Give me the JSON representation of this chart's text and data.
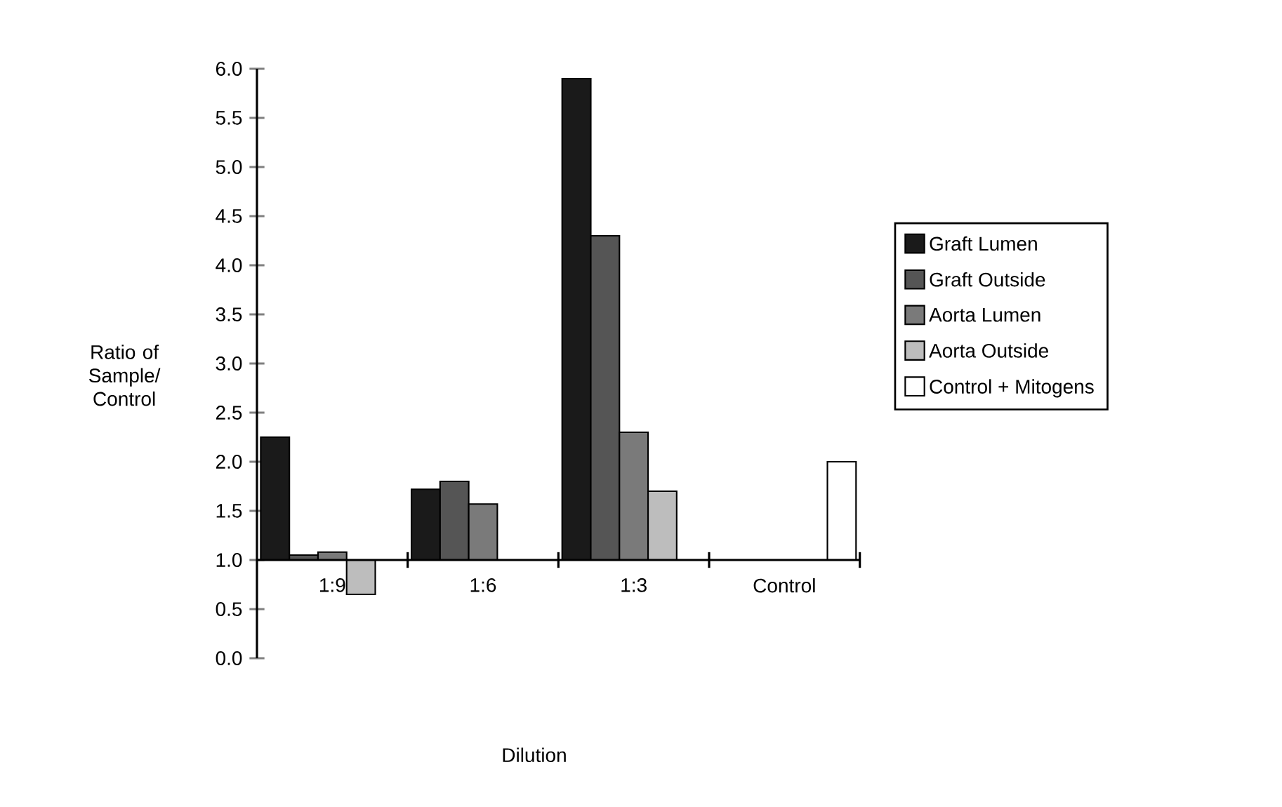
{
  "chart_data": {
    "type": "bar",
    "xlabel": "Dilution",
    "ylabel": "Ratio of Sample/ Control",
    "categories": [
      "1:9",
      "1:6",
      "1:3",
      "Control"
    ],
    "series": [
      {
        "name": "Graft Lumen",
        "color": "#1a1a1a",
        "base": [
          1.0,
          1.0,
          1.0,
          null
        ],
        "values": [
          1.25,
          0.72,
          4.9,
          null
        ]
      },
      {
        "name": "Graft Outside",
        "color": "#555555",
        "base": [
          1.0,
          1.0,
          1.0,
          null
        ],
        "values": [
          0.05,
          0.8,
          3.3,
          null
        ]
      },
      {
        "name": "Aorta Lumen",
        "color": "#7a7a7a",
        "base": [
          1.0,
          1.0,
          1.0,
          null
        ],
        "values": [
          0.08,
          0.57,
          1.3,
          null
        ]
      },
      {
        "name": "Aorta Outside",
        "color": "#bdbdbd",
        "base": [
          1.0,
          null,
          1.0,
          null
        ],
        "values": [
          -0.35,
          null,
          0.7,
          null
        ]
      },
      {
        "name": "Control + Mitogens",
        "color": "#ffffff",
        "base": [
          null,
          null,
          null,
          1.0
        ],
        "values": [
          null,
          null,
          null,
          1.0
        ]
      }
    ],
    "ylim": [
      0,
      6
    ],
    "yticks": [
      {
        "value": 0,
        "label": "0.0"
      },
      {
        "value": 0.5,
        "label": "0.5"
      },
      {
        "value": 1,
        "label": "1.0"
      },
      {
        "value": 1.5,
        "label": "1.5"
      },
      {
        "value": 2,
        "label": "2.0"
      },
      {
        "value": 2.5,
        "label": "2.5"
      },
      {
        "value": 3,
        "label": "3.0"
      },
      {
        "value": 3.5,
        "label": "3.5"
      },
      {
        "value": 4,
        "label": "4.0"
      },
      {
        "value": 4.5,
        "label": "4.5"
      },
      {
        "value": 5,
        "label": "5.0"
      },
      {
        "value": 5.5,
        "label": "5.5"
      },
      {
        "value": 6,
        "label": "6.0"
      }
    ],
    "legend": "right"
  }
}
